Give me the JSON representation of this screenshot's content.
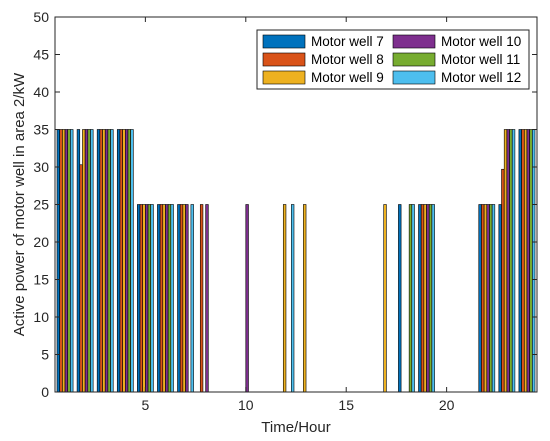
{
  "chart_data": {
    "type": "bar",
    "title": "",
    "xlabel": "Time/Hour",
    "ylabel": "Active power of motor well in area 2/kW",
    "xlim": [
      0.5,
      24.5
    ],
    "ylim": [
      0,
      50
    ],
    "xticks": [
      5,
      10,
      15,
      20
    ],
    "yticks": [
      0,
      5,
      10,
      15,
      20,
      25,
      30,
      35,
      40,
      45,
      50
    ],
    "grid": false,
    "legend_position": "top-right",
    "categories": [
      1,
      2,
      3,
      4,
      5,
      6,
      7,
      8,
      9,
      10,
      11,
      12,
      13,
      14,
      15,
      16,
      17,
      18,
      19,
      20,
      21,
      22,
      23,
      24
    ],
    "series": [
      {
        "name": "Motor well 7",
        "color": "#0072BD",
        "values": [
          35,
          35,
          35,
          35,
          25,
          25,
          25,
          0,
          0,
          0,
          0,
          0,
          0,
          0,
          0,
          0,
          0,
          25,
          25,
          0,
          0,
          25,
          25,
          35
        ]
      },
      {
        "name": "Motor well 8",
        "color": "#D95319",
        "values": [
          35,
          30.3,
          35,
          35,
          25,
          25,
          25,
          25,
          0,
          0,
          0,
          0,
          0,
          0,
          0,
          0,
          0,
          0,
          25,
          0,
          0,
          25,
          29.7,
          35
        ]
      },
      {
        "name": "Motor well 9",
        "color": "#EDB120",
        "values": [
          35,
          35,
          35,
          35,
          25,
          25,
          25,
          0,
          0,
          0,
          0,
          25,
          25,
          0,
          0,
          0,
          25,
          0,
          25,
          0,
          0,
          25,
          35,
          35
        ]
      },
      {
        "name": "Motor well 10",
        "color": "#7E2F8E",
        "values": [
          35,
          35,
          35,
          35,
          25,
          25,
          25,
          25,
          0,
          25,
          0,
          0,
          0,
          0,
          0,
          0,
          0,
          0,
          25,
          0,
          0,
          25,
          35,
          35
        ]
      },
      {
        "name": "Motor well 11",
        "color": "#77AC30",
        "values": [
          35,
          35,
          35,
          35,
          25,
          25,
          0,
          0,
          0,
          0,
          0,
          0,
          0,
          0,
          0,
          0,
          0,
          25,
          25,
          0,
          0,
          25,
          35,
          35
        ]
      },
      {
        "name": "Motor well 12",
        "color": "#4DBEEE",
        "values": [
          35,
          35,
          35,
          35,
          25,
          25,
          25,
          0,
          0,
          0,
          0,
          25,
          0,
          0,
          0,
          0,
          0,
          25,
          25,
          0,
          0,
          25,
          35,
          35
        ]
      }
    ]
  }
}
